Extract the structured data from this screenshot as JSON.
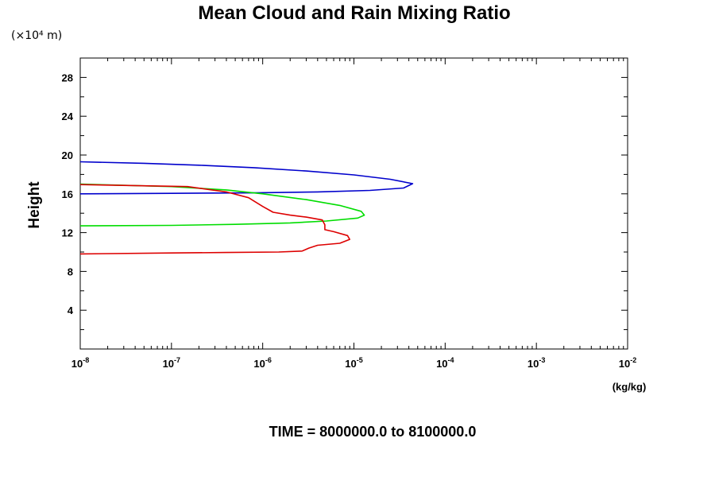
{
  "chart_data": {
    "type": "line",
    "title": "Mean Cloud and Rain Mixing Ratio",
    "xlabel": "(kg/kg)",
    "ylabel": "Height",
    "y_scale_label": "(×10⁴ m)",
    "footer": "TIME = 8000000.0 to 8100000.0",
    "x_scale": "log",
    "xlim": [
      1e-08,
      0.01
    ],
    "ylim": [
      0,
      30
    ],
    "x_ticks": [
      {
        "base": "10",
        "exp": "-8",
        "value": 1e-08
      },
      {
        "base": "10",
        "exp": "-7",
        "value": 1e-07
      },
      {
        "base": "10",
        "exp": "-6",
        "value": 1e-06
      },
      {
        "base": "10",
        "exp": "-5",
        "value": 1e-05
      },
      {
        "base": "10",
        "exp": "-4",
        "value": 0.0001
      },
      {
        "base": "10",
        "exp": "-3",
        "value": 0.001
      },
      {
        "base": "10",
        "exp": "-2",
        "value": 0.01
      }
    ],
    "y_ticks": [
      "4",
      "8",
      "12",
      "16",
      "20",
      "24",
      "28"
    ],
    "series": [
      {
        "color": "#0000cc",
        "points": [
          [
            1e-08,
            19.3
          ],
          [
            5e-08,
            19.15
          ],
          [
            2e-07,
            18.95
          ],
          [
            8e-07,
            18.7
          ],
          [
            3e-06,
            18.35
          ],
          [
            1e-05,
            17.95
          ],
          [
            2.5e-05,
            17.5
          ],
          [
            4.4e-05,
            17.05
          ],
          [
            3.5e-05,
            16.6
          ],
          [
            1.5e-05,
            16.35
          ],
          [
            4e-06,
            16.2
          ],
          [
            8e-07,
            16.1
          ],
          [
            1e-07,
            16.05
          ],
          [
            1e-08,
            16.0
          ]
        ]
      },
      {
        "color": "#00dd00",
        "points": [
          [
            1e-08,
            17.0
          ],
          [
            1e-07,
            16.75
          ],
          [
            4e-07,
            16.4
          ],
          [
            1e-06,
            16.0
          ],
          [
            3e-06,
            15.4
          ],
          [
            7e-06,
            14.8
          ],
          [
            1.2e-05,
            14.2
          ],
          [
            1.3e-05,
            13.8
          ],
          [
            1.1e-05,
            13.5
          ],
          [
            5e-06,
            13.2
          ],
          [
            2e-06,
            13.0
          ],
          [
            5e-07,
            12.85
          ],
          [
            1e-07,
            12.75
          ],
          [
            1e-08,
            12.7
          ]
        ]
      },
      {
        "color": "#dd0000",
        "points": [
          [
            1e-08,
            16.95
          ],
          [
            1.5e-07,
            16.75
          ],
          [
            4e-07,
            16.2
          ],
          [
            7e-07,
            15.6
          ],
          [
            1e-06,
            14.7
          ],
          [
            1.3e-06,
            14.1
          ],
          [
            2e-06,
            13.8
          ],
          [
            3e-06,
            13.6
          ],
          [
            4.5e-06,
            13.3
          ],
          [
            4.8e-06,
            12.8
          ],
          [
            4.8e-06,
            12.3
          ],
          [
            6e-06,
            12.1
          ],
          [
            8.5e-06,
            11.7
          ],
          [
            9e-06,
            11.3
          ],
          [
            7e-06,
            10.9
          ],
          [
            4e-06,
            10.7
          ],
          [
            3.2e-06,
            10.4
          ],
          [
            2.7e-06,
            10.1
          ],
          [
            1.5e-06,
            10.0
          ],
          [
            4e-07,
            9.95
          ],
          [
            1e-07,
            9.9
          ],
          [
            1e-08,
            9.8
          ]
        ]
      }
    ]
  }
}
